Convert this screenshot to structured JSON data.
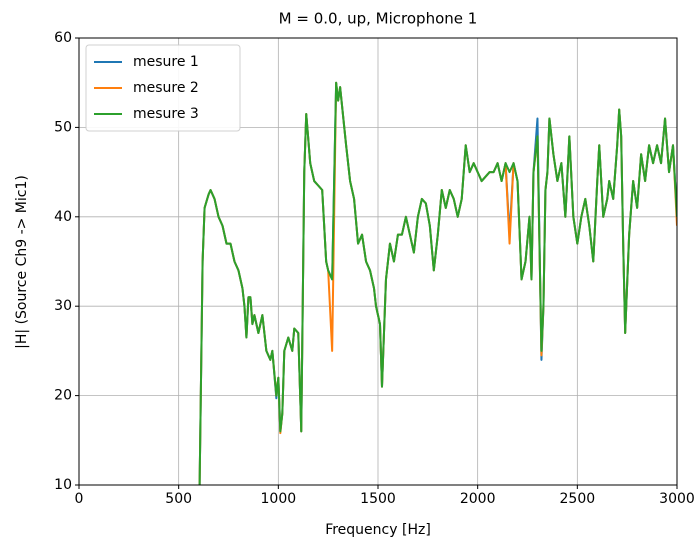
{
  "chart_data": {
    "type": "line",
    "title": "M = 0.0, up, Microphone 1",
    "xlabel": "Frequency [Hz]",
    "ylabel": "|H| (Source Ch9 -> Mic1)",
    "xlim": [
      0,
      3000
    ],
    "ylim": [
      10,
      60
    ],
    "xticks": [
      0,
      500,
      1000,
      1500,
      2000,
      2500,
      3000
    ],
    "yticks": [
      10,
      20,
      30,
      40,
      50,
      60
    ],
    "grid": true,
    "legend": "upper-left",
    "x": [
      605,
      620,
      630,
      650,
      660,
      680,
      700,
      720,
      740,
      760,
      780,
      800,
      820,
      830,
      840,
      850,
      860,
      870,
      880,
      900,
      920,
      940,
      960,
      970,
      990,
      1000,
      1010,
      1020,
      1030,
      1050,
      1070,
      1080,
      1100,
      1115,
      1130,
      1140,
      1160,
      1180,
      1200,
      1220,
      1240,
      1250,
      1270,
      1290,
      1300,
      1310,
      1340,
      1360,
      1380,
      1400,
      1420,
      1440,
      1460,
      1480,
      1490,
      1500,
      1510,
      1520,
      1540,
      1560,
      1580,
      1600,
      1620,
      1640,
      1660,
      1680,
      1700,
      1720,
      1740,
      1760,
      1780,
      1800,
      1820,
      1840,
      1860,
      1880,
      1900,
      1920,
      1940,
      1960,
      1980,
      2000,
      2020,
      2040,
      2060,
      2080,
      2100,
      2120,
      2140,
      2160,
      2180,
      2200,
      2220,
      2240,
      2260,
      2270,
      2280,
      2300,
      2320,
      2330,
      2340,
      2350,
      2360,
      2380,
      2400,
      2420,
      2440,
      2460,
      2480,
      2500,
      2520,
      2540,
      2560,
      2580,
      2600,
      2610,
      2630,
      2650,
      2660,
      2680,
      2700,
      2710,
      2720,
      2730,
      2740,
      2760,
      2780,
      2800,
      2820,
      2840,
      2860,
      2880,
      2900,
      2920,
      2940,
      2960,
      2980,
      3000
    ],
    "series": [
      {
        "name": "mesure 1",
        "color": "#1f77b4",
        "values": [
          10,
          35,
          41,
          42.5,
          43,
          42,
          40,
          39,
          37,
          37,
          35,
          34,
          32,
          30,
          26.5,
          31,
          31,
          28,
          29,
          27,
          29,
          25,
          24,
          25,
          19.7,
          22,
          16,
          18,
          25,
          26.5,
          25,
          27.5,
          27,
          16,
          45,
          51.5,
          46,
          44,
          43.5,
          43,
          35,
          34,
          33,
          55,
          53,
          54.5,
          48,
          44,
          42,
          37,
          38,
          35,
          34,
          32,
          30,
          29,
          28,
          21,
          33,
          37,
          35,
          38,
          38,
          40,
          38,
          36,
          40,
          42,
          41.5,
          39,
          34,
          38,
          43,
          41,
          43,
          42,
          40,
          42,
          48,
          45,
          46,
          45,
          44,
          44.5,
          45,
          45,
          46,
          44,
          46,
          38,
          46,
          44,
          33,
          35,
          40,
          33,
          45,
          51,
          24,
          30,
          43,
          45,
          51,
          47,
          44,
          46,
          40,
          49,
          40,
          37,
          40,
          42,
          39,
          35,
          44,
          48,
          40,
          42,
          44,
          42,
          48,
          52,
          49,
          37,
          27,
          38,
          44,
          41,
          47,
          44,
          48,
          46,
          48,
          46,
          51,
          45,
          48,
          40
        ]
      },
      {
        "name": "mesure 2",
        "color": "#ff7f0e",
        "values": [
          10,
          35,
          41,
          42.5,
          43,
          42,
          40,
          39,
          37,
          37,
          35,
          34,
          32,
          30,
          26.5,
          31,
          31,
          28,
          29,
          27,
          29,
          25,
          24,
          25,
          20,
          22,
          15.8,
          18,
          25,
          26.5,
          25,
          27.5,
          27,
          16,
          45,
          51.5,
          46,
          44,
          43.5,
          43,
          35,
          34,
          25,
          55,
          53,
          54.5,
          48,
          44,
          42,
          37,
          38,
          35,
          34,
          32,
          30,
          29,
          28,
          21,
          33,
          37,
          35,
          38,
          38,
          40,
          38,
          36,
          40,
          42,
          41.5,
          39,
          34,
          38,
          43,
          41,
          43,
          42,
          40,
          42,
          48,
          45,
          46,
          45,
          44,
          44.5,
          45,
          45,
          46,
          44,
          46,
          37,
          46,
          44,
          33,
          35,
          40,
          33,
          45,
          49,
          24.5,
          30,
          43,
          45,
          51,
          47,
          44,
          46,
          40,
          49,
          40,
          37,
          40,
          42,
          39,
          35,
          44,
          48,
          40,
          42,
          44,
          42,
          48,
          52,
          49,
          37,
          27,
          38,
          44,
          41,
          47,
          44,
          48,
          46,
          48,
          46,
          51,
          45,
          48,
          39
        ]
      },
      {
        "name": "mesure 3",
        "color": "#2ca02c",
        "values": [
          10,
          35,
          41,
          42.5,
          43,
          42,
          40,
          39,
          37,
          37,
          35,
          34,
          32,
          30,
          26.5,
          31,
          31,
          28,
          29,
          27,
          29,
          25,
          24,
          25,
          20,
          22,
          16,
          18,
          25,
          26.5,
          25,
          27.5,
          27,
          16,
          45,
          51.5,
          46,
          44,
          43.5,
          43,
          35,
          34,
          33,
          55,
          53,
          54.5,
          48,
          44,
          42,
          37,
          38,
          35,
          34,
          32,
          30,
          29,
          28,
          21,
          33,
          37,
          35,
          38,
          38,
          40,
          38,
          36,
          40,
          42,
          41.5,
          39,
          34,
          38,
          43,
          41,
          43,
          42,
          40,
          42,
          48,
          45,
          46,
          45,
          44,
          44.5,
          45,
          45,
          46,
          44,
          46,
          45,
          46,
          44,
          33,
          35,
          40,
          33,
          45,
          49,
          25,
          30,
          43,
          45,
          51,
          47,
          44,
          46,
          40,
          49,
          40,
          37,
          40,
          42,
          39,
          35,
          44,
          48,
          40,
          42,
          44,
          42,
          48,
          52,
          49,
          37,
          27,
          38,
          44,
          41,
          47,
          44,
          48,
          46,
          48,
          46,
          51,
          45,
          48,
          40
        ]
      }
    ]
  }
}
